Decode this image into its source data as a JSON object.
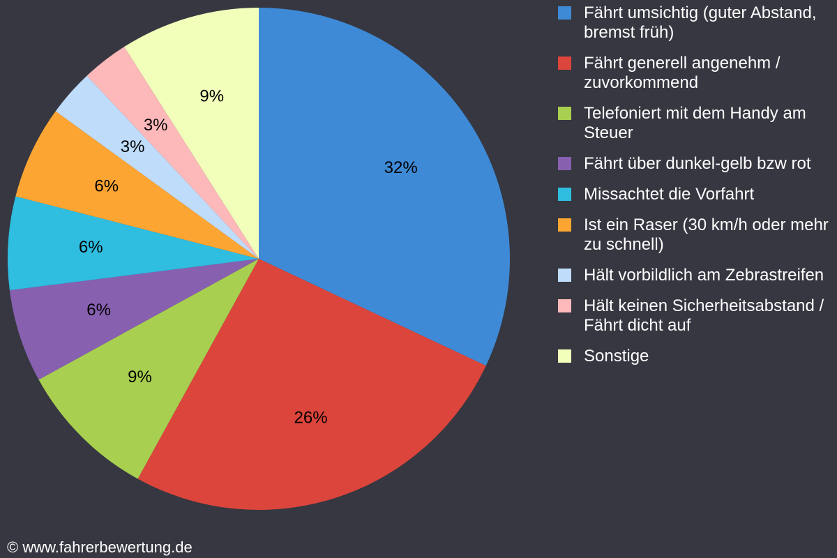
{
  "chart_data": {
    "type": "pie",
    "categories": [
      "Fährt umsichtig (guter Abstand, bremst früh)",
      "Fährt generell angenehm / zuvorkommend",
      "Telefoniert mit dem Handy am Steuer",
      "Fährt über dunkel-gelb bzw rot",
      "Missachtet die Vorfahrt",
      "Ist ein Raser (30 km/h oder mehr zu schnell)",
      "Hält vorbildlich am Zebrastreifen",
      "Hält keinen Sicherheitsabstand / Fährt dicht auf",
      "Sonstige"
    ],
    "values": [
      32,
      26,
      9,
      6,
      6,
      6,
      3,
      3,
      9
    ],
    "value_labels": [
      "32%",
      "26%",
      "9%",
      "6%",
      "6%",
      "6%",
      "3%",
      "3%",
      "9%"
    ],
    "colors": [
      "#3e8ad6",
      "#dc453b",
      "#a8cf4f",
      "#8760b0",
      "#2fbde0",
      "#fda533",
      "#bfdcfb",
      "#fdb9b9",
      "#f1ffbb"
    ],
    "legend": "right",
    "footer": "© www.fahrerbewertung.de"
  }
}
